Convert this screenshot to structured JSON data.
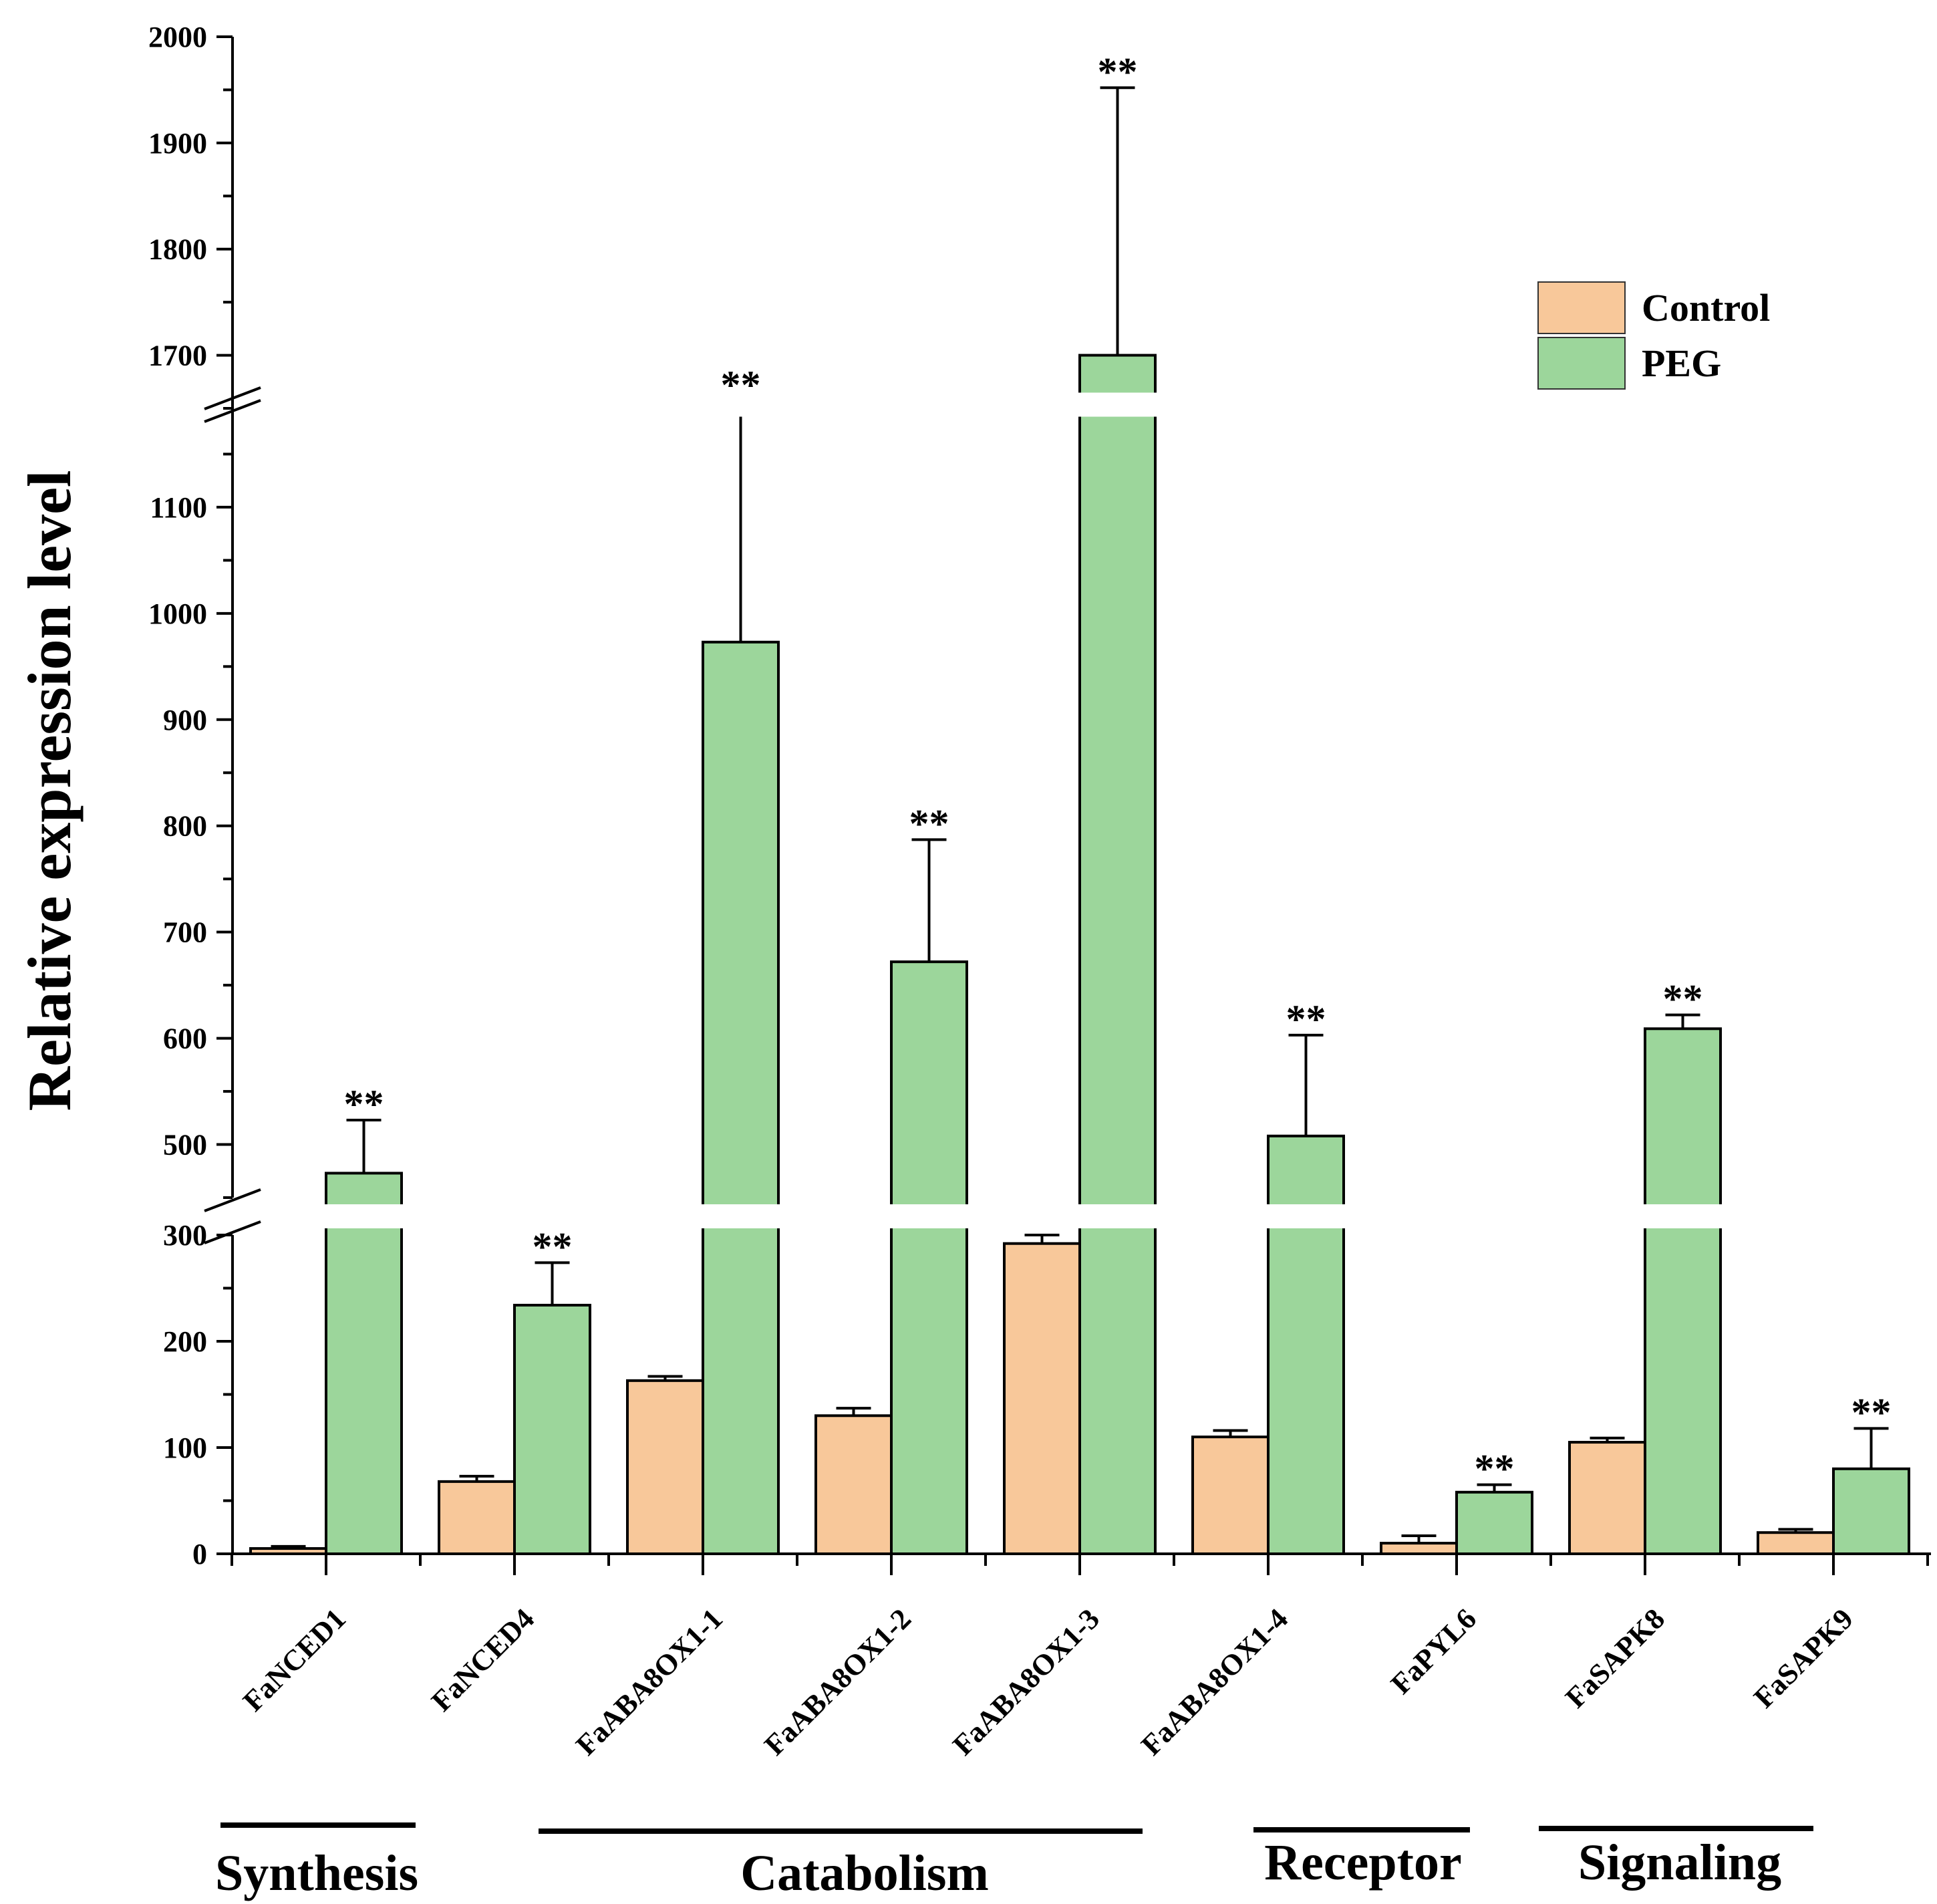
{
  "chart_data": {
    "type": "bar",
    "ylabel": "Relative expression level",
    "categories": [
      "FaNCED1",
      "FaNCED4",
      "FaABA8OX1-1",
      "FaABA8OX1-2",
      "FaABA8OX1-3",
      "FaABA8OX1-4",
      "FaPYL6",
      "FaSAPK8",
      "FaSAPK9"
    ],
    "series": [
      {
        "name": "Control",
        "color": "#f8c89a",
        "values": [
          5,
          68,
          163,
          130,
          292,
          110,
          10,
          105,
          20
        ],
        "errors": [
          2,
          5,
          4,
          7,
          20,
          6,
          7,
          4,
          3
        ]
      },
      {
        "name": "PEG",
        "color": "#9cd69b",
        "values": [
          473,
          234,
          973,
          672,
          1700,
          508,
          58,
          609,
          80
        ],
        "errors": [
          50,
          40,
          227,
          115,
          252,
          95,
          7,
          13,
          38
        ]
      }
    ],
    "significance": [
      "**",
      "**",
      "**",
      "**",
      "**",
      "**",
      "**",
      "**",
      "**"
    ],
    "axis_break_segments": [
      {
        "range": [
          0,
          300
        ],
        "ticks": [
          "0",
          "100",
          "200",
          "300"
        ]
      },
      {
        "range": [
          450,
          1200
        ],
        "ticks": [
          "500",
          "600",
          "700",
          "800",
          "900",
          "1000",
          "1100"
        ]
      },
      {
        "range": [
          1650,
          2000
        ],
        "ticks": [
          "1700",
          "1800",
          "1900",
          "2000"
        ]
      }
    ],
    "legend": {
      "position": "top-right",
      "entries": [
        "Control",
        "PEG"
      ]
    },
    "groups": [
      {
        "label": "Synthesis",
        "categories": [
          "FaNCED1",
          "FaNCED4"
        ]
      },
      {
        "label": "Catabolism",
        "categories": [
          "FaABA8OX1-1",
          "FaABA8OX1-2",
          "FaABA8OX1-3",
          "FaABA8OX1-4"
        ]
      },
      {
        "label": "Receptor",
        "categories": [
          "FaPYL6"
        ]
      },
      {
        "label": "Signaling",
        "categories": [
          "FaSAPK8",
          "FaSAPK9"
        ]
      }
    ]
  }
}
